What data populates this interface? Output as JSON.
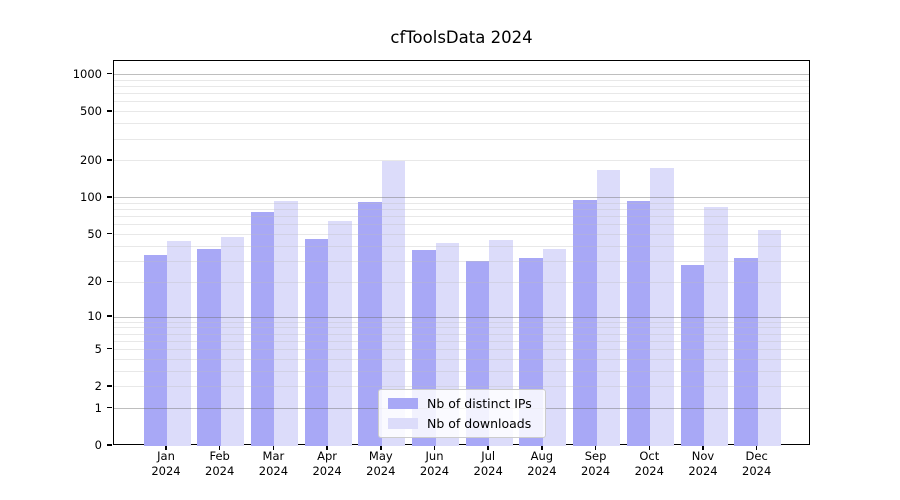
{
  "chart_data": {
    "type": "bar",
    "title": "cfToolsData 2024",
    "categories": [
      "Jan 2024",
      "Feb 2024",
      "Mar 2024",
      "Apr 2024",
      "May 2024",
      "Jun 2024",
      "Jul 2024",
      "Aug 2024",
      "Sep 2024",
      "Oct 2024",
      "Nov 2024",
      "Dec 2024"
    ],
    "series": [
      {
        "name": "Nb of distinct IPs",
        "color": "#a8a8f6",
        "values": [
          34,
          38,
          77,
          46,
          92,
          37,
          30,
          32,
          96,
          95,
          28,
          32
        ]
      },
      {
        "name": "Nb of downloads",
        "color": "#dcdcfa",
        "values": [
          44,
          48,
          95,
          65,
          200,
          43,
          45,
          38,
          170,
          175,
          85,
          55
        ]
      }
    ],
    "y_scale": "log1p",
    "y_ticks": [
      0,
      1,
      2,
      5,
      10,
      20,
      50,
      100,
      200,
      500,
      1000
    ],
    "y_major_gridlines": [
      1,
      10,
      100,
      1000
    ],
    "y_minor_gridlines": [
      2,
      3,
      4,
      5,
      6,
      7,
      8,
      9,
      20,
      30,
      40,
      50,
      60,
      70,
      80,
      90,
      200,
      300,
      400,
      500,
      600,
      700,
      800,
      900
    ],
    "ylim": [
      0,
      1276
    ],
    "grid": true,
    "legend_position": "lower center",
    "xlabel": "",
    "ylabel": ""
  },
  "colors": {
    "axis": "#000000",
    "major_grid": "#6e6e6e",
    "minor_grid": "#bebebe",
    "legend_border": "#cccccc"
  }
}
